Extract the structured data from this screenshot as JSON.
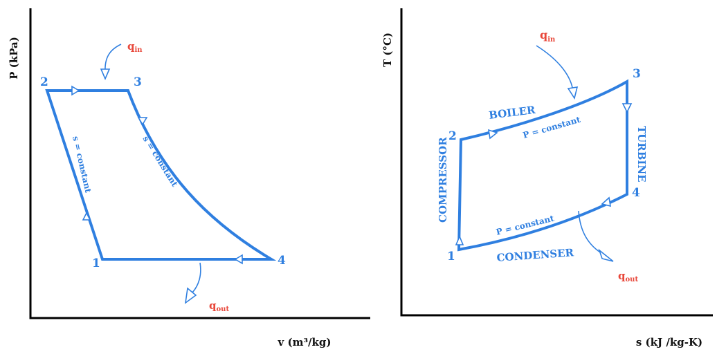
{
  "pv_diagram": {
    "y_axis_label": "P (kPa)",
    "x_axis_label": "v (m³/kg)",
    "states": [
      "1",
      "2",
      "3",
      "4"
    ],
    "q_in": {
      "symbol": "q",
      "subscript": "in"
    },
    "q_out": {
      "symbol": "q",
      "subscript": "out"
    },
    "process_labels": {
      "pump": "s = constant",
      "turbine": "s = constant"
    }
  },
  "ts_diagram": {
    "y_axis_label": "T (°C)",
    "x_axis_label": "s (kJ /kg-K)",
    "states": [
      "1",
      "2",
      "3",
      "4"
    ],
    "q_in": {
      "symbol": "q",
      "subscript": "in"
    },
    "q_out": {
      "symbol": "q",
      "subscript": "out"
    },
    "components": {
      "boiler": "BOILER",
      "turbine": "TURBINE",
      "condenser": "CONDENSER",
      "compressor": "COMPRESSOR"
    },
    "process_labels": {
      "boiler": "P = constant",
      "condenser": "P = constant"
    }
  },
  "colors": {
    "cycle": "#2f7fe0",
    "heat": "#e8473a",
    "axis": "#000000"
  }
}
